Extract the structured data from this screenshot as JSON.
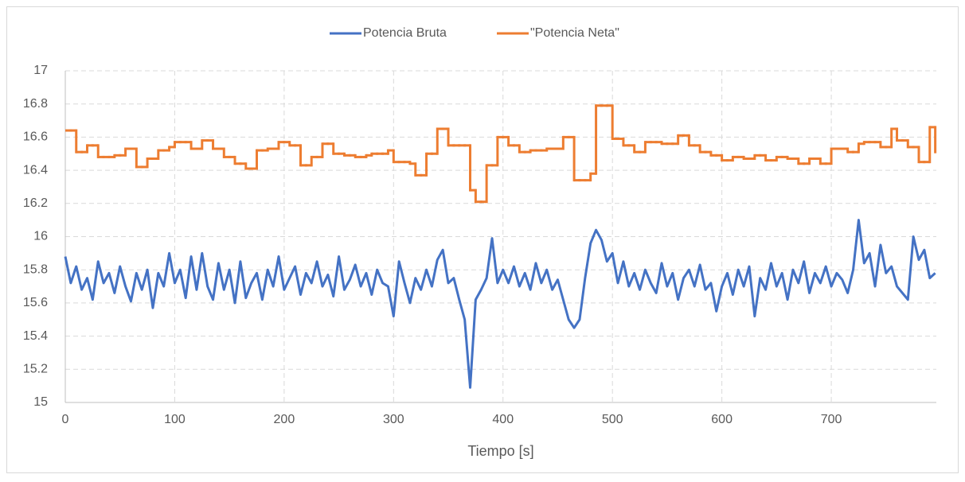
{
  "chart_data": {
    "type": "line",
    "x_label": "Tiempo [s]",
    "xlim": [
      0,
      796
    ],
    "xticks": [
      0,
      100,
      200,
      300,
      400,
      500,
      600,
      700
    ],
    "ylim": [
      15,
      17
    ],
    "yticks": [
      15,
      15.2,
      15.4,
      15.6,
      15.8,
      16,
      16.2,
      16.4,
      16.6,
      16.8,
      17
    ],
    "grid": true,
    "legend": "top",
    "x": [
      0,
      5,
      10,
      15,
      20,
      25,
      30,
      35,
      40,
      45,
      50,
      55,
      60,
      65,
      70,
      75,
      80,
      85,
      90,
      95,
      100,
      105,
      110,
      115,
      120,
      125,
      130,
      135,
      140,
      145,
      150,
      155,
      160,
      165,
      170,
      175,
      180,
      185,
      190,
      195,
      200,
      205,
      210,
      215,
      220,
      225,
      230,
      235,
      240,
      245,
      250,
      255,
      260,
      265,
      270,
      275,
      280,
      285,
      290,
      295,
      300,
      305,
      310,
      315,
      320,
      325,
      330,
      335,
      340,
      345,
      350,
      355,
      360,
      365,
      370,
      375,
      380,
      385,
      390,
      395,
      400,
      405,
      410,
      415,
      420,
      425,
      430,
      435,
      440,
      445,
      450,
      455,
      460,
      465,
      470,
      475,
      480,
      485,
      490,
      495,
      500,
      505,
      510,
      515,
      520,
      525,
      530,
      535,
      540,
      545,
      550,
      555,
      560,
      565,
      570,
      575,
      580,
      585,
      590,
      595,
      600,
      605,
      610,
      615,
      620,
      625,
      630,
      635,
      640,
      645,
      650,
      655,
      660,
      665,
      670,
      675,
      680,
      685,
      690,
      695,
      700,
      705,
      710,
      715,
      720,
      725,
      730,
      735,
      740,
      745,
      750,
      755,
      760,
      765,
      770,
      775,
      780,
      785,
      790,
      795
    ],
    "series": [
      {
        "name": "Potencia Bruta",
        "color": "#4472c4",
        "step": false,
        "values": [
          15.88,
          15.72,
          15.82,
          15.68,
          15.75,
          15.62,
          15.85,
          15.72,
          15.78,
          15.66,
          15.82,
          15.7,
          15.61,
          15.78,
          15.68,
          15.8,
          15.57,
          15.78,
          15.7,
          15.9,
          15.72,
          15.8,
          15.63,
          15.88,
          15.68,
          15.9,
          15.7,
          15.62,
          15.84,
          15.68,
          15.8,
          15.6,
          15.85,
          15.63,
          15.72,
          15.78,
          15.62,
          15.8,
          15.7,
          15.88,
          15.68,
          15.75,
          15.82,
          15.65,
          15.78,
          15.72,
          15.85,
          15.7,
          15.77,
          15.64,
          15.88,
          15.68,
          15.74,
          15.83,
          15.7,
          15.78,
          15.65,
          15.8,
          15.72,
          15.7,
          15.52,
          15.85,
          15.72,
          15.6,
          15.75,
          15.68,
          15.8,
          15.7,
          15.86,
          15.92,
          15.72,
          15.75,
          15.62,
          15.5,
          15.09,
          15.62,
          15.68,
          15.75,
          15.99,
          15.72,
          15.8,
          15.72,
          15.82,
          15.7,
          15.78,
          15.68,
          15.84,
          15.72,
          15.8,
          15.68,
          15.74,
          15.62,
          15.5,
          15.45,
          15.5,
          15.75,
          15.96,
          16.04,
          15.98,
          15.85,
          15.9,
          15.72,
          15.85,
          15.7,
          15.78,
          15.68,
          15.8,
          15.72,
          15.66,
          15.84,
          15.7,
          15.78,
          15.62,
          15.75,
          15.8,
          15.7,
          15.83,
          15.68,
          15.72,
          15.55,
          15.7,
          15.78,
          15.65,
          15.8,
          15.7,
          15.82,
          15.52,
          15.75,
          15.68,
          15.84,
          15.7,
          15.78,
          15.62,
          15.8,
          15.72,
          15.85,
          15.66,
          15.78,
          15.72,
          15.82,
          15.7,
          15.78,
          15.74,
          15.66,
          15.8,
          16.1,
          15.84,
          15.9,
          15.7,
          15.95,
          15.78,
          15.82,
          15.7,
          15.66,
          15.62,
          16.0,
          15.86,
          15.92,
          15.75,
          15.78
        ]
      },
      {
        "name": "\"Potencia Neta\"",
        "color": "#ed7d31",
        "step": true,
        "values": [
          16.64,
          16.64,
          16.51,
          16.51,
          16.55,
          16.55,
          16.48,
          16.48,
          16.48,
          16.49,
          16.49,
          16.53,
          16.53,
          16.42,
          16.42,
          16.47,
          16.47,
          16.52,
          16.52,
          16.54,
          16.57,
          16.57,
          16.57,
          16.53,
          16.53,
          16.58,
          16.58,
          16.53,
          16.53,
          16.48,
          16.48,
          16.44,
          16.44,
          16.41,
          16.41,
          16.52,
          16.52,
          16.53,
          16.53,
          16.57,
          16.57,
          16.55,
          16.55,
          16.43,
          16.43,
          16.48,
          16.48,
          16.56,
          16.56,
          16.5,
          16.5,
          16.49,
          16.49,
          16.48,
          16.48,
          16.49,
          16.5,
          16.5,
          16.5,
          16.52,
          16.45,
          16.45,
          16.45,
          16.44,
          16.37,
          16.37,
          16.5,
          16.5,
          16.65,
          16.65,
          16.55,
          16.55,
          16.55,
          16.55,
          16.28,
          16.21,
          16.21,
          16.43,
          16.43,
          16.6,
          16.6,
          16.55,
          16.55,
          16.51,
          16.51,
          16.52,
          16.52,
          16.52,
          16.53,
          16.53,
          16.53,
          16.6,
          16.6,
          16.34,
          16.34,
          16.34,
          16.38,
          16.79,
          16.79,
          16.79,
          16.59,
          16.59,
          16.55,
          16.55,
          16.51,
          16.51,
          16.57,
          16.57,
          16.57,
          16.56,
          16.56,
          16.56,
          16.61,
          16.61,
          16.55,
          16.55,
          16.51,
          16.51,
          16.49,
          16.49,
          16.46,
          16.46,
          16.48,
          16.48,
          16.47,
          16.47,
          16.49,
          16.49,
          16.46,
          16.46,
          16.48,
          16.48,
          16.47,
          16.47,
          16.44,
          16.44,
          16.47,
          16.47,
          16.44,
          16.44,
          16.53,
          16.53,
          16.53,
          16.51,
          16.51,
          16.56,
          16.57,
          16.57,
          16.57,
          16.54,
          16.54,
          16.65,
          16.58,
          16.58,
          16.54,
          16.54,
          16.45,
          16.45,
          16.66,
          16.51
        ]
      }
    ]
  }
}
